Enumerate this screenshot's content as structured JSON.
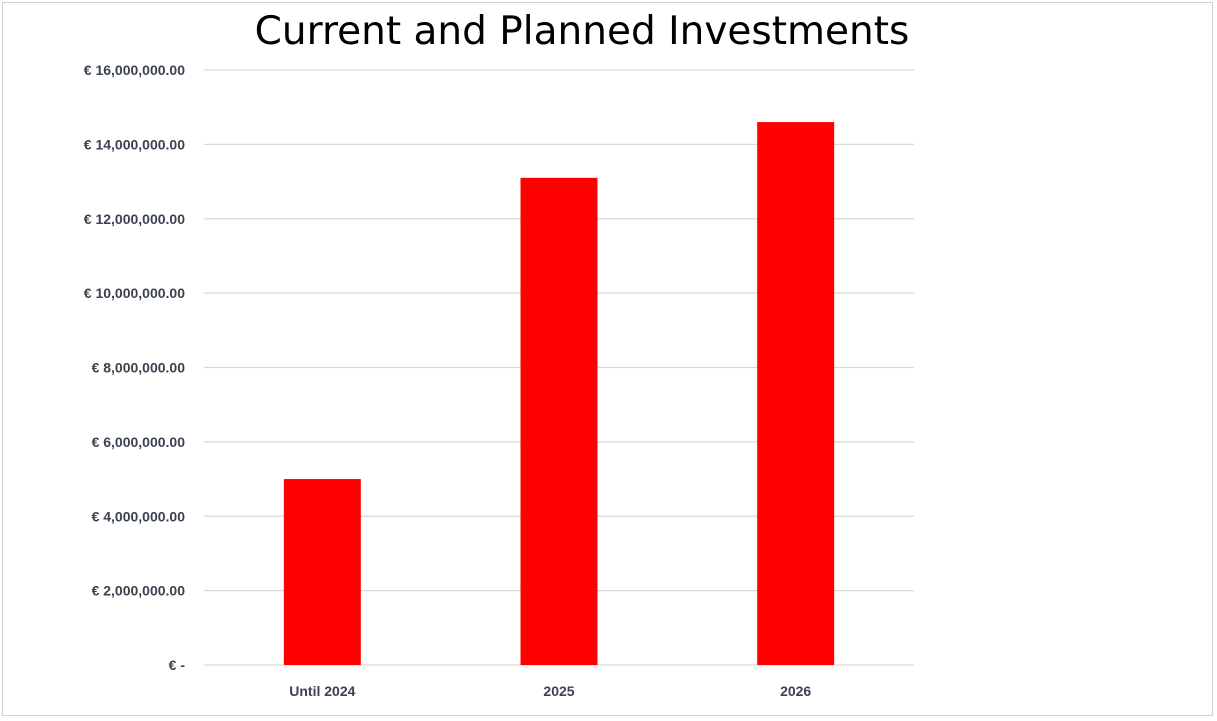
{
  "chart_data": {
    "type": "bar",
    "title": "Current and Planned Investments",
    "xlabel": "",
    "ylabel": "",
    "categories": [
      "Until 2024",
      "2025",
      "2026"
    ],
    "series": [
      {
        "values": [
          5000000,
          13100000,
          14600000
        ]
      }
    ],
    "ylim": [
      0,
      16000000
    ],
    "yticks": [
      0,
      2000000,
      4000000,
      6000000,
      8000000,
      10000000,
      12000000,
      14000000,
      16000000
    ],
    "ytick_labels": [
      "€ -",
      "€ 2,000,000.00",
      "€ 4,000,000.00",
      "€ 6,000,000.00",
      "€ 8,000,000.00",
      "€ 10,000,000.00",
      "€ 12,000,000.00",
      "€ 14,000,000.00",
      "€ 16,000,000.00"
    ],
    "grid": true,
    "legend": "none",
    "bar_color": "#ff0000",
    "grid_color": "#d9d9d9",
    "axis_color": "#d9d9d9"
  }
}
